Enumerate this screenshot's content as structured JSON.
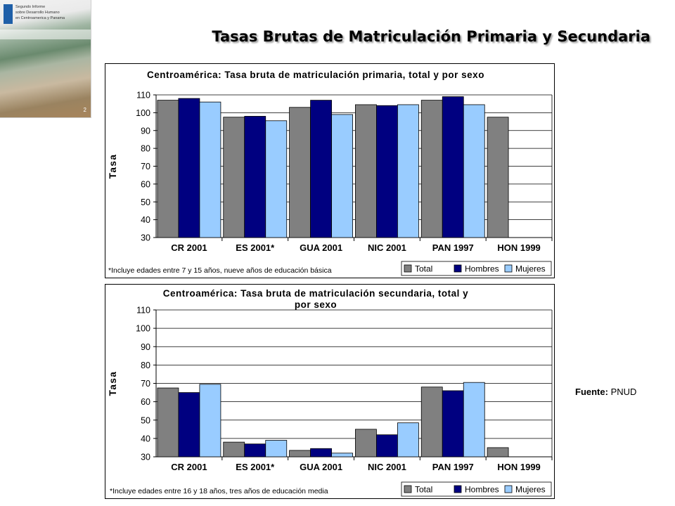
{
  "page": {
    "title": "Tasas Brutas de Matriculación Primaria y Secundaria",
    "source_label": "Fuente:",
    "source_value": "PNUD"
  },
  "cover": {
    "lines": [
      "Segundo Informe",
      "sobre Desarrollo Humano",
      "en Centroamerica y Panama"
    ],
    "page_number": "2"
  },
  "colors": {
    "Total": "#808080",
    "Hombres": "#000080",
    "Mujeres": "#99ccff",
    "plot_bg": "#ffffff",
    "grid": "#000000"
  },
  "chart_data": [
    {
      "type": "bar",
      "title": "Centroamérica: Tasa bruta de matriculación primaria, total y por sexo",
      "ylabel": "Tasa",
      "ylim": [
        30,
        110
      ],
      "yticks": [
        30,
        40,
        50,
        60,
        70,
        80,
        90,
        100,
        110
      ],
      "grid": true,
      "categories": [
        "CR 2001",
        "ES 2001*",
        "GUA 2001",
        "NIC 2001",
        "PAN 1997",
        "HON 1999"
      ],
      "series": [
        {
          "name": "Total",
          "values": [
            107,
            97.5,
            103,
            104.5,
            107,
            97.5
          ]
        },
        {
          "name": "Hombres",
          "values": [
            108,
            98,
            107,
            104,
            109,
            null
          ]
        },
        {
          "name": "Mujeres",
          "values": [
            106,
            95.5,
            99,
            104.5,
            104.5,
            null
          ]
        }
      ],
      "footnote": "*Incluye edades entre 7 y 15 años, nueve años de educación básica",
      "legend_position": "bottom-right"
    },
    {
      "type": "bar",
      "title": "Centroamérica: Tasa bruta de matriculación secundaria, total y por sexo",
      "ylabel": "Tasa",
      "ylim": [
        30,
        110
      ],
      "yticks": [
        30,
        40,
        50,
        60,
        70,
        80,
        90,
        100,
        110
      ],
      "grid": true,
      "categories": [
        "CR 2001",
        "ES 2001*",
        "GUA 2001",
        "NIC 2001",
        "PAN 1997",
        "HON 1999"
      ],
      "series": [
        {
          "name": "Total",
          "values": [
            67.5,
            38,
            33.5,
            45,
            68,
            35
          ]
        },
        {
          "name": "Hombres",
          "values": [
            65,
            37,
            34.5,
            42,
            66,
            null
          ]
        },
        {
          "name": "Mujeres",
          "values": [
            69.5,
            39,
            32,
            48.5,
            70.5,
            null
          ]
        }
      ],
      "footnote": "*Incluye edades entre 16 y 18 años, tres años de educación media",
      "legend_position": "bottom-right"
    }
  ]
}
